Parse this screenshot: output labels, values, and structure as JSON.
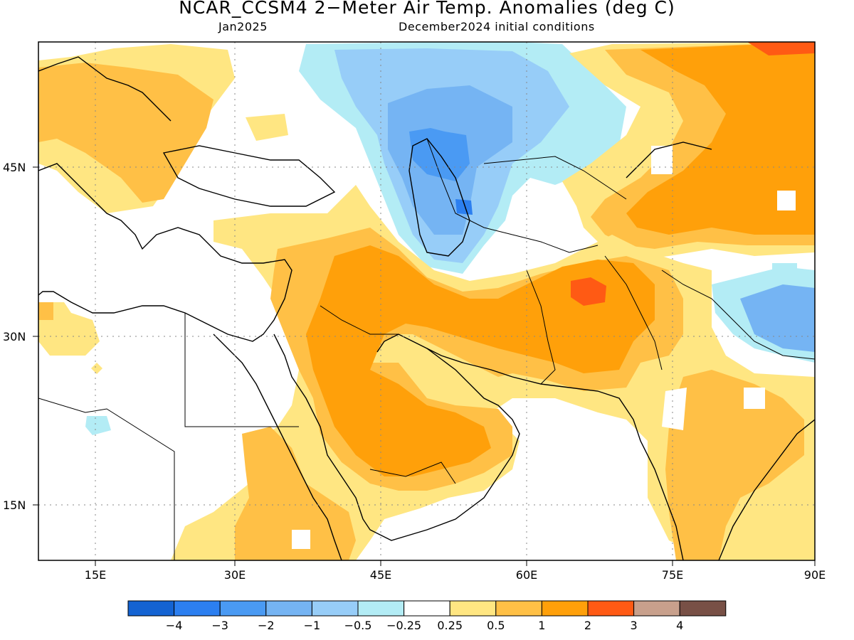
{
  "header": {
    "title": "NCAR_CCSM4 2−Meter Air Temp. Anomalies (deg C)",
    "valid_month": "Jan2025",
    "init": "December2024 initial conditions"
  },
  "axes": {
    "lat_labels": [
      "45N",
      "30N",
      "15N"
    ],
    "lon_labels": [
      "15E",
      "30E",
      "45E",
      "60E",
      "75E",
      "90E"
    ]
  },
  "colorbar": {
    "colors": [
      "#1463d2",
      "#2c7ff0",
      "#4a9af3",
      "#75b4f3",
      "#97cdf8",
      "#b3ecf5",
      "#ffffff",
      "#ffe682",
      "#ffc046",
      "#ffa00a",
      "#ff5a14",
      "#c8a08c",
      "#785046"
    ],
    "labels": [
      "−4",
      "−3",
      "−2",
      "−1",
      "−0.5",
      "−0.25",
      "0.25",
      "0.5",
      "1",
      "2",
      "3",
      "4"
    ]
  },
  "regions": [
    {
      "name": "europe-warm-anomaly",
      "level": "0.5 to 1"
    },
    {
      "name": "caspian-cold-anomaly",
      "level": "-2 to -1"
    },
    {
      "name": "kazakhstan-cool-anomaly",
      "level": "-1 to -0.5"
    },
    {
      "name": "arabia-warm-anomaly",
      "level": "1 to 2"
    },
    {
      "name": "iran-afghanistan-warm-anomaly",
      "level": "1 to 2"
    },
    {
      "name": "afghanistan-hot-spot",
      "level": "2 to 3"
    },
    {
      "name": "mongolia-warm-anomaly",
      "level": "1 to 2"
    },
    {
      "name": "tibet-cold-anomaly",
      "level": "-2 to -1"
    },
    {
      "name": "india-warm-anomaly",
      "level": "0.5 to 1"
    },
    {
      "name": "east-africa-warm-anomaly",
      "level": "0.5 to 1"
    }
  ]
}
